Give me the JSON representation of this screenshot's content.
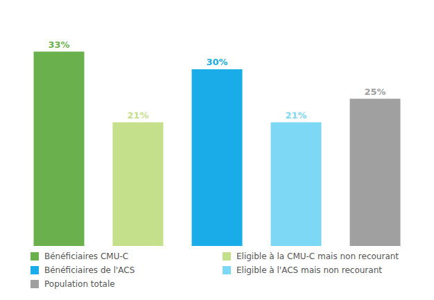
{
  "chart_data": {
    "type": "bar",
    "categories": [
      "Bénéficiaires CMU-C",
      "Eligible à la CMU-C mais non recourant",
      "Bénéficiaires de l'ACS",
      "Eligible à l'ACS mais non recourant",
      "Population totale"
    ],
    "values": [
      33,
      21,
      30,
      21,
      25
    ],
    "value_labels": [
      "33%",
      "21%",
      "30%",
      "21%",
      "25%"
    ],
    "colors": [
      "#6ab04c",
      "#c5e08a",
      "#1aace8",
      "#7dd8f5",
      "#a0a0a0"
    ],
    "ylim": [
      0,
      38
    ],
    "data_labels": true,
    "tick_labels": false,
    "grid": false,
    "legend": "bottom"
  }
}
